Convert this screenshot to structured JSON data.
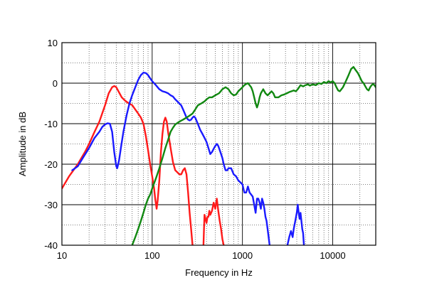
{
  "chart_data": {
    "type": "line",
    "title": "",
    "xlabel": "Frequency in Hz",
    "ylabel": "Amplitude in dB",
    "xscale": "log",
    "xlim": [
      10,
      30000
    ],
    "ylim": [
      -40,
      10
    ],
    "grid": true,
    "x_ticks": [
      {
        "value": 10,
        "label": "10"
      },
      {
        "value": 100,
        "label": "100"
      },
      {
        "value": 1000,
        "label": "1000"
      },
      {
        "value": 10000,
        "label": "10000"
      }
    ],
    "y_ticks": [
      {
        "value": 10,
        "label": "10"
      },
      {
        "value": 0,
        "label": "0"
      },
      {
        "value": -10,
        "label": "-10"
      },
      {
        "value": -20,
        "label": "-20"
      },
      {
        "value": -30,
        "label": "-30"
      },
      {
        "value": -40,
        "label": "-40"
      }
    ],
    "series": [
      {
        "color": "#ff1a1a",
        "segments": [
          [
            [
              10,
              -26
            ],
            [
              12,
              -23
            ],
            [
              15,
              -20
            ],
            [
              18,
              -17
            ],
            [
              20,
              -15
            ],
            [
              23,
              -12
            ],
            [
              26,
              -9.5
            ],
            [
              30,
              -5.5
            ],
            [
              33,
              -2.5
            ],
            [
              36,
              -1
            ],
            [
              38,
              -0.7
            ],
            [
              40,
              -1
            ],
            [
              43,
              -2.3
            ],
            [
              46,
              -3.5
            ],
            [
              50,
              -4.3
            ],
            [
              55,
              -5
            ],
            [
              60,
              -5.4
            ],
            [
              65,
              -6.5
            ],
            [
              70,
              -7.5
            ],
            [
              75,
              -8.5
            ],
            [
              80,
              -10
            ],
            [
              85,
              -13
            ],
            [
              90,
              -16.5
            ],
            [
              95,
              -20
            ],
            [
              100,
              -23
            ],
            [
              105,
              -26
            ],
            [
              108,
              -28.5
            ],
            [
              112,
              -31
            ],
            [
              115,
              -29
            ],
            [
              120,
              -24
            ],
            [
              125,
              -17
            ],
            [
              130,
              -12.5
            ],
            [
              135,
              -9.5
            ],
            [
              140,
              -8.5
            ],
            [
              145,
              -9.5
            ],
            [
              150,
              -12
            ],
            [
              160,
              -16
            ],
            [
              170,
              -19.5
            ],
            [
              180,
              -21.5
            ],
            [
              190,
              -22
            ],
            [
              200,
              -22.5
            ],
            [
              210,
              -22.5
            ],
            [
              220,
              -21.5
            ],
            [
              230,
              -21
            ],
            [
              240,
              -22.5
            ],
            [
              250,
              -27
            ],
            [
              260,
              -32
            ],
            [
              270,
              -36
            ],
            [
              280,
              -40
            ]
          ],
          [
            [
              370,
              -40
            ],
            [
              375,
              -36
            ],
            [
              380,
              -32.5
            ],
            [
              390,
              -33.5
            ],
            [
              400,
              -34.5
            ],
            [
              410,
              -33
            ],
            [
              420,
              -33
            ],
            [
              430,
              -31.5
            ],
            [
              440,
              -32.5
            ],
            [
              460,
              -31.5
            ],
            [
              480,
              -29.5
            ],
            [
              500,
              -31
            ],
            [
              520,
              -28.5
            ],
            [
              540,
              -31.5
            ],
            [
              560,
              -34
            ],
            [
              580,
              -36
            ],
            [
              600,
              -38.5
            ],
            [
              620,
              -40
            ]
          ]
        ]
      },
      {
        "color": "#1a1aff",
        "segments": [
          [
            [
              13,
              -21.5
            ],
            [
              15,
              -20.5
            ],
            [
              17,
              -18.5
            ],
            [
              20,
              -16
            ],
            [
              23,
              -13.5
            ],
            [
              26,
              -12
            ],
            [
              28,
              -10.8
            ],
            [
              30,
              -10.2
            ],
            [
              32,
              -9.9
            ],
            [
              34,
              -10
            ],
            [
              36,
              -12
            ],
            [
              38,
              -17
            ],
            [
              40,
              -20.5
            ],
            [
              41,
              -21
            ],
            [
              43,
              -19
            ],
            [
              45,
              -16
            ],
            [
              48,
              -12
            ],
            [
              52,
              -8
            ],
            [
              56,
              -5
            ],
            [
              60,
              -3
            ],
            [
              65,
              -1
            ],
            [
              70,
              0.8
            ],
            [
              75,
              2
            ],
            [
              80,
              2.6
            ],
            [
              85,
              2.5
            ],
            [
              90,
              2
            ],
            [
              95,
              1.2
            ],
            [
              100,
              0.5
            ],
            [
              110,
              -0.5
            ],
            [
              120,
              -1.5
            ],
            [
              130,
              -2
            ],
            [
              140,
              -2.2
            ],
            [
              150,
              -2.5
            ],
            [
              160,
              -3
            ],
            [
              170,
              -3.3
            ],
            [
              180,
              -4
            ],
            [
              190,
              -4.5
            ],
            [
              200,
              -5
            ],
            [
              210,
              -5.5
            ],
            [
              220,
              -6.5
            ],
            [
              230,
              -7.5
            ],
            [
              240,
              -8.5
            ],
            [
              250,
              -9
            ],
            [
              260,
              -9.2
            ],
            [
              270,
              -9
            ],
            [
              280,
              -8.5
            ],
            [
              290,
              -8.2
            ],
            [
              300,
              -8.5
            ],
            [
              320,
              -10
            ],
            [
              340,
              -11.5
            ],
            [
              360,
              -12.5
            ],
            [
              380,
              -13.5
            ],
            [
              400,
              -14.5
            ],
            [
              420,
              -16
            ],
            [
              440,
              -17.5
            ],
            [
              460,
              -17
            ],
            [
              480,
              -16.2
            ],
            [
              500,
              -15.5
            ],
            [
              520,
              -15
            ],
            [
              540,
              -15.5
            ],
            [
              560,
              -16.5
            ],
            [
              580,
              -17.5
            ],
            [
              600,
              -18.5
            ],
            [
              620,
              -20
            ],
            [
              650,
              -21.5
            ],
            [
              680,
              -21.5
            ],
            [
              700,
              -21
            ],
            [
              750,
              -21
            ],
            [
              800,
              -22.5
            ],
            [
              850,
              -23
            ],
            [
              900,
              -24
            ],
            [
              950,
              -24.5
            ],
            [
              1000,
              -25
            ],
            [
              1050,
              -27
            ],
            [
              1100,
              -27
            ],
            [
              1150,
              -25.5
            ],
            [
              1200,
              -27
            ],
            [
              1250,
              -27.5
            ],
            [
              1300,
              -28
            ],
            [
              1350,
              -30
            ],
            [
              1400,
              -32
            ],
            [
              1450,
              -28.5
            ],
            [
              1500,
              -28.5
            ],
            [
              1550,
              -29.5
            ],
            [
              1600,
              -31
            ],
            [
              1650,
              -28.5
            ],
            [
              1700,
              -29.5
            ],
            [
              1750,
              -31
            ],
            [
              1800,
              -33
            ],
            [
              1850,
              -34
            ],
            [
              1900,
              -36
            ],
            [
              1950,
              -38
            ],
            [
              2000,
              -40
            ]
          ],
          [
            [
              3150,
              -40
            ],
            [
              3300,
              -38
            ],
            [
              3450,
              -36.5
            ],
            [
              3600,
              -38
            ],
            [
              3700,
              -36
            ],
            [
              3850,
              -34
            ],
            [
              4000,
              -32
            ],
            [
              4100,
              -30
            ],
            [
              4200,
              -32
            ],
            [
              4300,
              -33.5
            ],
            [
              4400,
              -32
            ],
            [
              4500,
              -34
            ],
            [
              4600,
              -36
            ],
            [
              4700,
              -37
            ],
            [
              4800,
              -40
            ]
          ]
        ]
      },
      {
        "color": "#118811",
        "segments": [
          [
            [
              60,
              -40
            ],
            [
              65,
              -38
            ],
            [
              70,
              -36
            ],
            [
              75,
              -34
            ],
            [
              80,
              -32
            ],
            [
              85,
              -30
            ],
            [
              90,
              -28.5
            ],
            [
              95,
              -27.5
            ],
            [
              100,
              -26
            ],
            [
              110,
              -23.5
            ],
            [
              120,
              -21
            ],
            [
              130,
              -18.5
            ],
            [
              140,
              -16
            ],
            [
              150,
              -14
            ],
            [
              160,
              -12
            ],
            [
              170,
              -11
            ],
            [
              180,
              -10.2
            ],
            [
              200,
              -9.5
            ],
            [
              220,
              -9
            ],
            [
              240,
              -8.5
            ],
            [
              260,
              -8
            ],
            [
              280,
              -7.5
            ],
            [
              300,
              -6.5
            ],
            [
              320,
              -5.5
            ],
            [
              350,
              -5
            ],
            [
              380,
              -4.5
            ],
            [
              400,
              -4
            ],
            [
              430,
              -3.5
            ],
            [
              460,
              -3.5
            ],
            [
              500,
              -3
            ],
            [
              550,
              -2.5
            ],
            [
              600,
              -1.5
            ],
            [
              650,
              -1
            ],
            [
              700,
              -1.5
            ],
            [
              750,
              -2.5
            ],
            [
              800,
              -3
            ],
            [
              850,
              -2.8
            ],
            [
              900,
              -2
            ],
            [
              950,
              -1.5
            ],
            [
              1000,
              -1
            ],
            [
              1050,
              -0.5
            ],
            [
              1100,
              -0.2
            ],
            [
              1150,
              0
            ],
            [
              1200,
              -0.5
            ],
            [
              1250,
              -1
            ],
            [
              1300,
              -2
            ],
            [
              1350,
              -3.5
            ],
            [
              1400,
              -5
            ],
            [
              1450,
              -6
            ],
            [
              1500,
              -5
            ],
            [
              1550,
              -3.5
            ],
            [
              1600,
              -2.5
            ],
            [
              1700,
              -1.5
            ],
            [
              1800,
              -2.5
            ],
            [
              1900,
              -3
            ],
            [
              2000,
              -2.5
            ],
            [
              2100,
              -2
            ],
            [
              2200,
              -2.5
            ],
            [
              2300,
              -3.5
            ],
            [
              2500,
              -3.5
            ],
            [
              2700,
              -3
            ],
            [
              2900,
              -2.8
            ],
            [
              3100,
              -2.5
            ],
            [
              3300,
              -2.2
            ],
            [
              3500,
              -2
            ],
            [
              3700,
              -1.8
            ],
            [
              3900,
              -2
            ],
            [
              4100,
              -1.5
            ],
            [
              4400,
              -0.5
            ],
            [
              4700,
              -0.8
            ],
            [
              5000,
              -0.5
            ],
            [
              5300,
              -0.3
            ],
            [
              5600,
              -0.6
            ],
            [
              6000,
              -0.3
            ],
            [
              6500,
              -0.5
            ],
            [
              7000,
              0
            ],
            [
              7500,
              -0.2
            ],
            [
              8000,
              0.3
            ],
            [
              8500,
              0
            ],
            [
              9000,
              0.5
            ],
            [
              9500,
              0.2
            ],
            [
              10000,
              0.5
            ],
            [
              10500,
              0
            ],
            [
              11000,
              -1
            ],
            [
              11500,
              -1.8
            ],
            [
              12000,
              -2
            ],
            [
              12500,
              -1.5
            ],
            [
              13000,
              -1
            ],
            [
              14000,
              0.5
            ],
            [
              15000,
              2
            ],
            [
              16000,
              3.5
            ],
            [
              17000,
              4
            ],
            [
              18000,
              3.2
            ],
            [
              19000,
              2.5
            ],
            [
              20000,
              1.5
            ],
            [
              21000,
              0.5
            ],
            [
              22000,
              0
            ],
            [
              23000,
              -0.8
            ],
            [
              24000,
              -1.5
            ],
            [
              25000,
              -1.8
            ],
            [
              26000,
              -1
            ],
            [
              27000,
              -0.5
            ],
            [
              28000,
              -0.2
            ],
            [
              29000,
              -0.5
            ],
            [
              30000,
              -1
            ]
          ]
        ]
      }
    ]
  }
}
